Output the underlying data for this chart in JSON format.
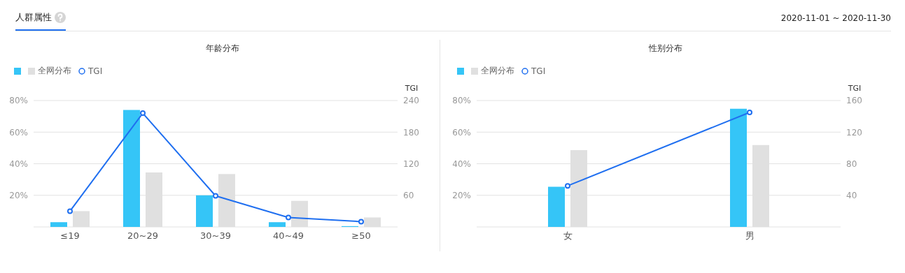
{
  "chart_data": [
    {
      "type": "bar",
      "title": "年龄分布",
      "annotations": [
        "人群属性",
        "2020-11-01 ~ 2020-11-30"
      ],
      "categories": [
        "≤19",
        "20~29",
        "30~39",
        "40~49",
        "≥50"
      ],
      "series": [
        {
          "color": "#35c5f7",
          "values": [
            3,
            74,
            20,
            3,
            0.5
          ]
        },
        {
          "name": "全网分布",
          "color": "#e0e0e0",
          "values": [
            10,
            34.5,
            33.5,
            16.5,
            6
          ]
        },
        {
          "name": "TGI",
          "type": "line",
          "axis": "y2",
          "color": "#1f6ff0",
          "values": [
            30,
            216,
            59,
            18,
            10
          ]
        }
      ],
      "ylim": [
        0,
        80
      ],
      "yticks": [
        {
          "value": 0,
          "label": null
        },
        {
          "value": 20,
          "label": "20%"
        },
        {
          "value": 40,
          "label": "40%"
        },
        {
          "value": 60,
          "label": "60%"
        },
        {
          "value": 80,
          "label": "80%"
        }
      ],
      "y2label": "TGI",
      "y2lim": [
        0,
        240
      ],
      "y2ticks": [
        60,
        120,
        180,
        240
      ],
      "grid": "y",
      "legend": "top left",
      "marker": "circle"
    },
    {
      "type": "bar",
      "title": "性别分布",
      "categories": [
        "女",
        "男"
      ],
      "series": [
        {
          "color": "#35c5f7",
          "values": [
            25.4,
            74.8
          ]
        },
        {
          "name": "全网分布",
          "color": "#e0e0e0",
          "values": [
            48.6,
            51.8
          ]
        },
        {
          "name": "TGI",
          "type": "line",
          "axis": "y2",
          "color": "#1f6ff0",
          "values": [
            52,
            145
          ]
        }
      ],
      "ylim": [
        0,
        80
      ],
      "yticks": [
        {
          "value": 0,
          "label": null
        },
        {
          "value": 20,
          "label": "20%"
        },
        {
          "value": 40,
          "label": "40%"
        },
        {
          "value": 60,
          "label": "60%"
        },
        {
          "value": 80,
          "label": "80%"
        }
      ],
      "y2label": "TGI",
      "y2lim": [
        0,
        160
      ],
      "y2ticks": [
        40,
        80,
        120,
        160
      ],
      "grid": "y",
      "legend": "top left",
      "marker": "circle"
    }
  ]
}
